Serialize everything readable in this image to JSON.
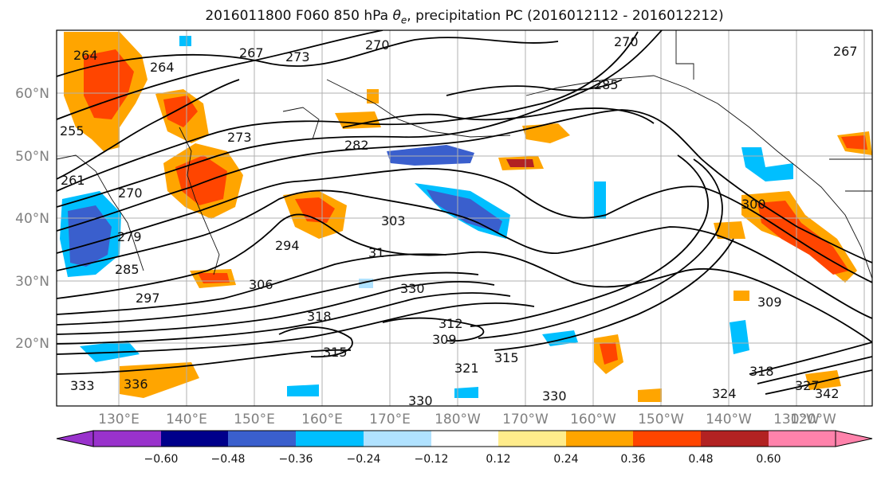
{
  "title": {
    "main": "2016011800 F060 850 hPa ",
    "theta": "θ",
    "theta_sub": "e",
    "rest": ", precipitation PC (2016012112 - 2016012212)"
  },
  "lat_labels": [
    "60°N",
    "50°N",
    "40°N",
    "30°N",
    "20°N"
  ],
  "lon_labels": [
    "130°E",
    "140°E",
    "150°E",
    "160°E",
    "170°E",
    "180°W",
    "170°W",
    "160°W",
    "150°W",
    "140°W",
    "130°W",
    "120°W"
  ],
  "colorbar": {
    "ticks": [
      "−0.60",
      "−0.48",
      "−0.36",
      "−0.24",
      "−0.12",
      "0.12",
      "0.24",
      "0.36",
      "0.48",
      "0.60"
    ],
    "colors": [
      "#9932cc",
      "#00008b",
      "#3a5fcd",
      "#00bfff",
      "#b0e2ff",
      "#ffffff",
      "#ffec8b",
      "#ffa500",
      "#ff4500",
      "#b22222",
      "#ff82ab"
    ]
  },
  "contour_labels": [
    "264",
    "267",
    "273",
    "270",
    "264",
    "270",
    "285",
    "267",
    "255",
    "273",
    "282",
    "261",
    "270",
    "279",
    "303",
    "294",
    "300",
    "285",
    "297",
    "306",
    "31",
    "330",
    "309",
    "318",
    "312",
    "309",
    "315",
    "315",
    "321",
    "327",
    "324",
    "342",
    "333",
    "336",
    "330",
    "330",
    "318"
  ],
  "colors": {
    "axes": "#000000",
    "grid": "#b0b0b0",
    "tick_label": "#808080"
  }
}
